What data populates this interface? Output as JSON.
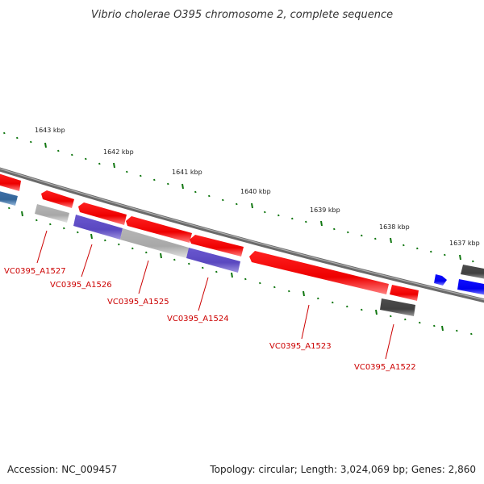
{
  "title": "Vibrio cholerae O395 chromosome 2, complete sequence",
  "footer": {
    "accession": "Accession: NC_009457",
    "stats": "Topology: circular; Length: 3,024,069 bp; Genes: 2,860"
  },
  "ruler": [
    "1643 kbp",
    "1642 kbp",
    "1641 kbp",
    "1640 kbp",
    "1639 kbp",
    "1638 kbp",
    "1637 kbp"
  ],
  "genes": [
    "VC0395_A1527",
    "VC0395_A1526",
    "VC0395_A1525",
    "VC0395_A1524",
    "VC0395_A1523",
    "VC0395_A1522"
  ],
  "colors": {
    "forward_cds": "#ff0000",
    "reverse_cds_purple": "#6655cc",
    "reverse_cds_gray": "#bbbbbb",
    "dark_gray": "#555555",
    "blue": "#0000ff",
    "steel_blue": "#4477aa",
    "tick": "#117711",
    "label": "#cc0000"
  }
}
